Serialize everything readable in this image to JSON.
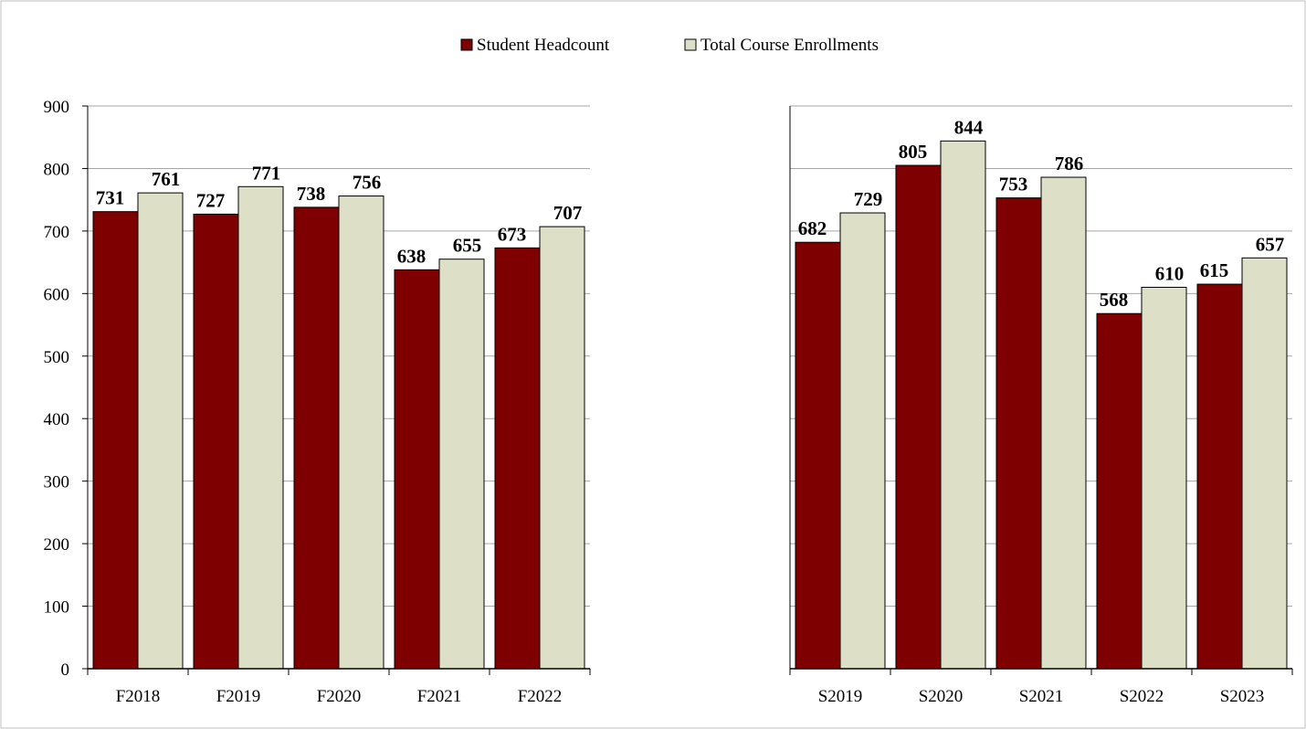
{
  "chart_data": {
    "type": "bar",
    "legend_placement": "top",
    "grid": true,
    "ylim": [
      0,
      900
    ],
    "yticks": [
      "0",
      "100",
      "200",
      "300",
      "400",
      "500",
      "600",
      "700",
      "800",
      "900"
    ],
    "series": [
      {
        "name": "Student Headcount",
        "color": "#7f0000"
      },
      {
        "name": "Total Course Enrollments",
        "color": "#dedfc7"
      }
    ],
    "panels": [
      {
        "categories": [
          "F2018",
          "F2019",
          "F2020",
          "F2021",
          "F2022"
        ],
        "values": {
          "Student Headcount": [
            731,
            727,
            738,
            638,
            673
          ],
          "Total Course Enrollments": [
            761,
            771,
            756,
            655,
            707
          ]
        },
        "has_y_axis_labels": true
      },
      {
        "categories": [
          "S2019",
          "S2020",
          "S2021",
          "S2022",
          "S2023"
        ],
        "values": {
          "Student Headcount": [
            682,
            805,
            753,
            568,
            615
          ],
          "Total Course Enrollments": [
            729,
            844,
            786,
            610,
            657
          ]
        },
        "has_y_axis_labels": false
      }
    ]
  }
}
